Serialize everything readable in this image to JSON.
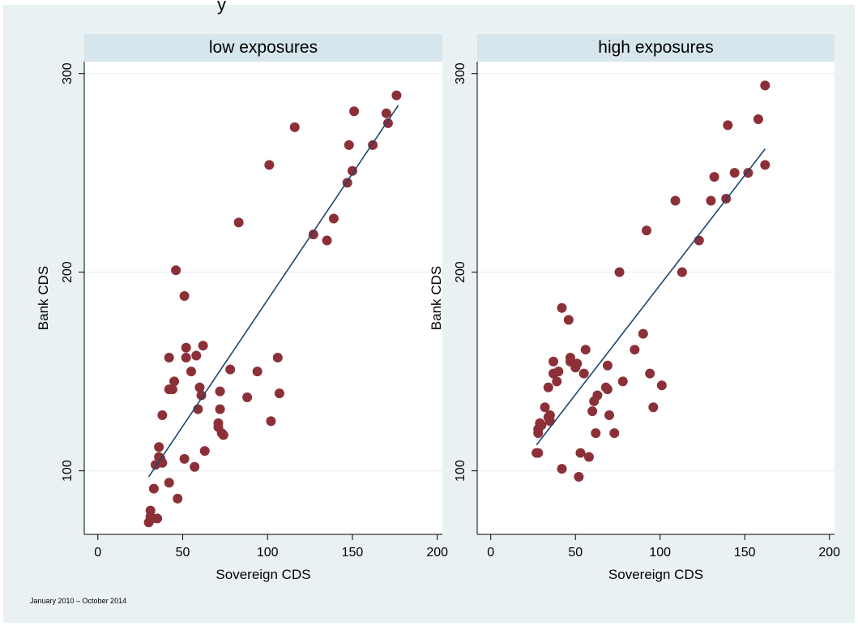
{
  "header_fragment": "y",
  "note": "January 2010 – October 2014",
  "style": {
    "background": "#eaf1f3",
    "panel_header": "#d7e5ec",
    "marker_color": "#8c3038",
    "line_color": "#1a476f",
    "grid_color": "#eaf1f3"
  },
  "chart_data": [
    {
      "type": "scatter",
      "title": "low exposures",
      "xlabel": "Sovereign CDS",
      "ylabel": "Bank CDS",
      "xlim": [
        -8,
        203
      ],
      "ylim": [
        68,
        306
      ],
      "xticks": [
        0,
        50,
        100,
        150,
        200
      ],
      "yticks": [
        100,
        200,
        300
      ],
      "grid": true,
      "fit_line": {
        "x": [
          30,
          177
        ],
        "y": [
          97,
          284
        ]
      },
      "points": [
        [
          30,
          74
        ],
        [
          31,
          77
        ],
        [
          31,
          80
        ],
        [
          32,
          76
        ],
        [
          33,
          91
        ],
        [
          34,
          103
        ],
        [
          35,
          76
        ],
        [
          36,
          112
        ],
        [
          36,
          107
        ],
        [
          37,
          106
        ],
        [
          38,
          104
        ],
        [
          38,
          128
        ],
        [
          42,
          157
        ],
        [
          42,
          94
        ],
        [
          42,
          141
        ],
        [
          44,
          141
        ],
        [
          45,
          145
        ],
        [
          46,
          201
        ],
        [
          47,
          86
        ],
        [
          51,
          188
        ],
        [
          51,
          106
        ],
        [
          52,
          162
        ],
        [
          52,
          157
        ],
        [
          55,
          150
        ],
        [
          57,
          102
        ],
        [
          58,
          158
        ],
        [
          59,
          131
        ],
        [
          60,
          142
        ],
        [
          61,
          138
        ],
        [
          62,
          163
        ],
        [
          63,
          110
        ],
        [
          71,
          122
        ],
        [
          71,
          124
        ],
        [
          72,
          140
        ],
        [
          72,
          131
        ],
        [
          73,
          119
        ],
        [
          74,
          118
        ],
        [
          78,
          151
        ],
        [
          83,
          225
        ],
        [
          88,
          137
        ],
        [
          94,
          150
        ],
        [
          101,
          254
        ],
        [
          102,
          125
        ],
        [
          106,
          157
        ],
        [
          107,
          139
        ],
        [
          116,
          273
        ],
        [
          127,
          219
        ],
        [
          135,
          216
        ],
        [
          139,
          227
        ],
        [
          147,
          245
        ],
        [
          148,
          264
        ],
        [
          150,
          251
        ],
        [
          151,
          281
        ],
        [
          162,
          264
        ],
        [
          170,
          280
        ],
        [
          171,
          275
        ],
        [
          176,
          289
        ]
      ]
    },
    {
      "type": "scatter",
      "title": "high exposures",
      "xlabel": "Sovereign CDS",
      "ylabel": "Bank CDS",
      "xlim": [
        -8,
        203
      ],
      "ylim": [
        68,
        306
      ],
      "xticks": [
        0,
        50,
        100,
        150,
        200
      ],
      "yticks": [
        100,
        200,
        300
      ],
      "grid": true,
      "fit_line": {
        "x": [
          27,
          162
        ],
        "y": [
          113,
          262
        ]
      },
      "points": [
        [
          27,
          109
        ],
        [
          28,
          109
        ],
        [
          28,
          119
        ],
        [
          28,
          121
        ],
        [
          29,
          124
        ],
        [
          30,
          123
        ],
        [
          32,
          132
        ],
        [
          34,
          127
        ],
        [
          34,
          142
        ],
        [
          35,
          125
        ],
        [
          35,
          128
        ],
        [
          37,
          155
        ],
        [
          37,
          149
        ],
        [
          39,
          145
        ],
        [
          40,
          150
        ],
        [
          42,
          182
        ],
        [
          42,
          101
        ],
        [
          46,
          176
        ],
        [
          47,
          157
        ],
        [
          47,
          155
        ],
        [
          50,
          152
        ],
        [
          51,
          154
        ],
        [
          52,
          97
        ],
        [
          53,
          109
        ],
        [
          55,
          149
        ],
        [
          56,
          161
        ],
        [
          58,
          107
        ],
        [
          60,
          130
        ],
        [
          61,
          135
        ],
        [
          62,
          119
        ],
        [
          63,
          138
        ],
        [
          68,
          142
        ],
        [
          69,
          153
        ],
        [
          69,
          141
        ],
        [
          70,
          128
        ],
        [
          73,
          119
        ],
        [
          76,
          200
        ],
        [
          78,
          145
        ],
        [
          85,
          161
        ],
        [
          90,
          169
        ],
        [
          92,
          221
        ],
        [
          94,
          149
        ],
        [
          96,
          132
        ],
        [
          101,
          143
        ],
        [
          109,
          236
        ],
        [
          113,
          200
        ],
        [
          123,
          216
        ],
        [
          130,
          236
        ],
        [
          132,
          248
        ],
        [
          139,
          237
        ],
        [
          140,
          274
        ],
        [
          144,
          250
        ],
        [
          152,
          250
        ],
        [
          158,
          277
        ],
        [
          162,
          254
        ],
        [
          162,
          294
        ]
      ]
    }
  ]
}
